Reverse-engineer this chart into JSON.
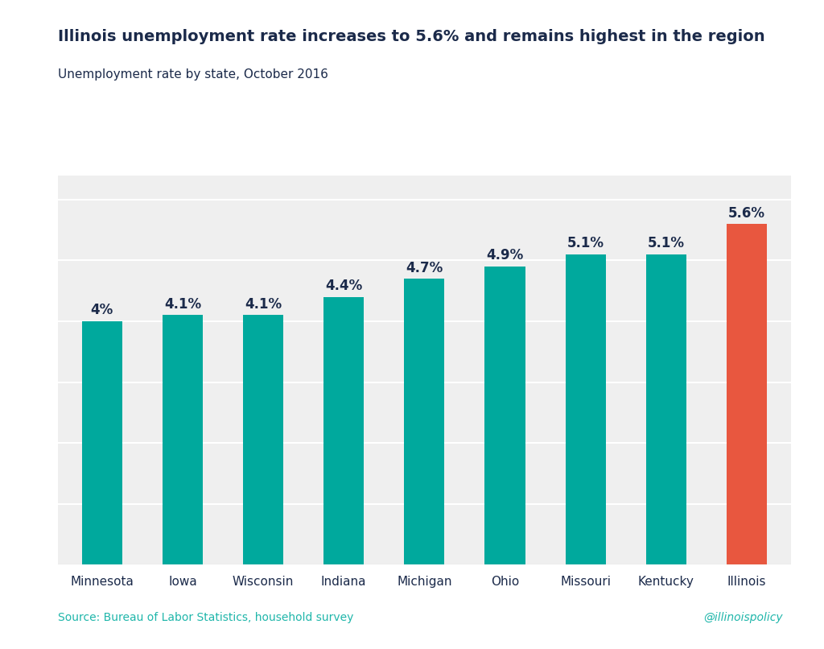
{
  "categories": [
    "Minnesota",
    "Iowa",
    "Wisconsin",
    "Indiana",
    "Michigan",
    "Ohio",
    "Missouri",
    "Kentucky",
    "Illinois"
  ],
  "values": [
    4.0,
    4.1,
    4.1,
    4.4,
    4.7,
    4.9,
    5.1,
    5.1,
    5.6
  ],
  "labels": [
    "4%",
    "4.1%",
    "4.1%",
    "4.4%",
    "4.7%",
    "4.9%",
    "5.1%",
    "5.1%",
    "5.6%"
  ],
  "bar_colors": [
    "#00A99D",
    "#00A99D",
    "#00A99D",
    "#00A99D",
    "#00A99D",
    "#00A99D",
    "#00A99D",
    "#00A99D",
    "#E8573F"
  ],
  "title": "Illinois unemployment rate increases to 5.6% and remains highest in the region",
  "subtitle": "Unemployment rate by state, October 2016",
  "source": "Source: Bureau of Labor Statistics, household survey",
  "watermark": "@illinoispolicy",
  "title_color": "#1B2A4A",
  "subtitle_color": "#1B2A4A",
  "label_color": "#1B2A4A",
  "tick_color": "#1B2A4A",
  "source_color": "#1FB6AA",
  "watermark_color": "#1FB6AA",
  "background_color": "#FFFFFF",
  "plot_bg_color": "#EFEFEF",
  "grid_color": "#FFFFFF",
  "ylim": [
    0,
    6.4
  ],
  "bar_width": 0.5,
  "title_fontsize": 14,
  "subtitle_fontsize": 11,
  "label_fontsize": 12,
  "tick_fontsize": 11,
  "source_fontsize": 10,
  "watermark_fontsize": 10
}
